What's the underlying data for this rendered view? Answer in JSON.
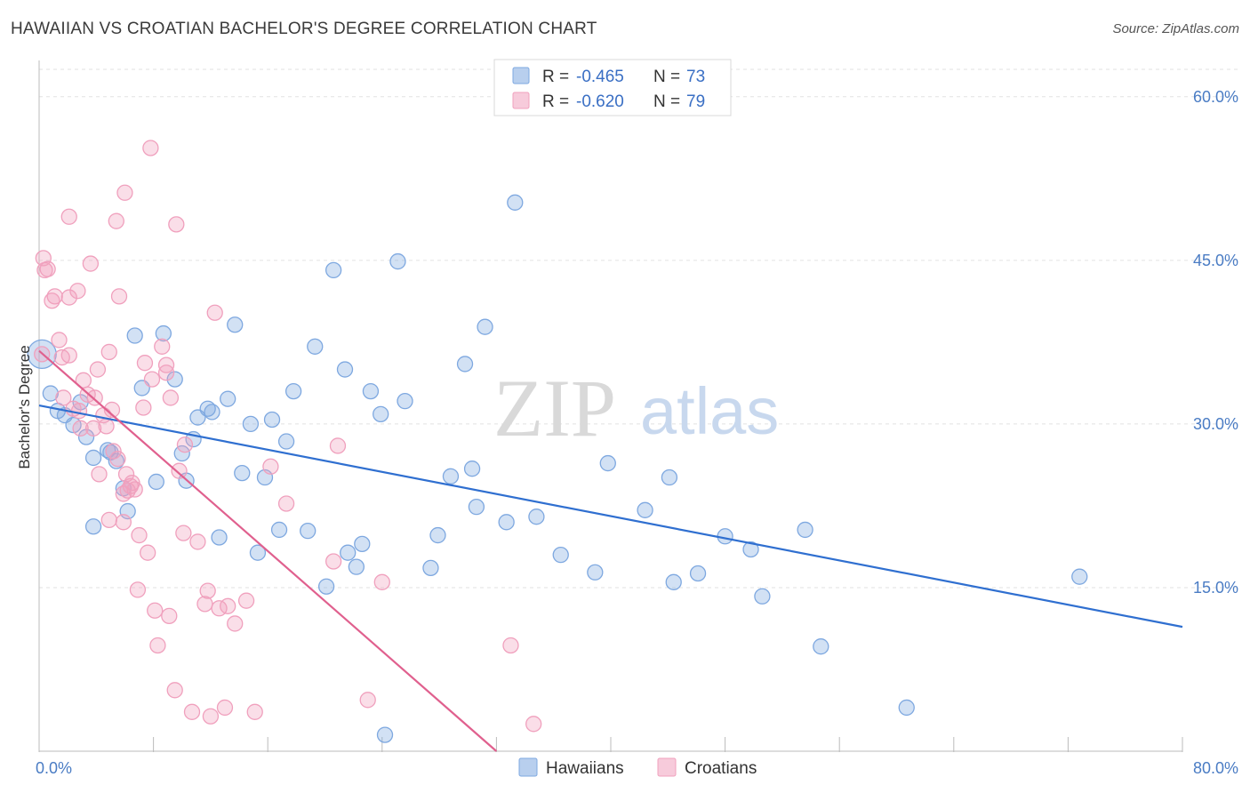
{
  "title": "HAWAIIAN VS CROATIAN BACHELOR'S DEGREE CORRELATION CHART",
  "source": "Source: ZipAtlas.com",
  "watermark": {
    "zip": "ZIP",
    "atlas": "atlas"
  },
  "legend_top": [
    {
      "r_label": "R = ",
      "r_value": "-0.465",
      "n_label": "N = ",
      "n_value": "73",
      "color": "#7ea8e0"
    },
    {
      "r_label": "R = ",
      "r_value": "-0.620",
      "n_label": "N = ",
      "n_value": "79",
      "color": "#f0a0bd"
    }
  ],
  "chart_data": {
    "type": "scatter",
    "title": "HAWAIIAN VS CROATIAN BACHELOR'S DEGREE CORRELATION CHART",
    "xlabel": "",
    "ylabel": "Bachelor's Degree",
    "xlim": [
      0,
      80
    ],
    "ylim": [
      0,
      63
    ],
    "x_tick_labels": [
      {
        "v": 0,
        "label": "0.0%"
      },
      {
        "v": 80,
        "label": "80.0%"
      }
    ],
    "y_tick_labels": [
      {
        "v": 15,
        "label": "15.0%"
      },
      {
        "v": 30,
        "label": "30.0%"
      },
      {
        "v": 45,
        "label": "45.0%"
      },
      {
        "v": 60,
        "label": "60.0%"
      }
    ],
    "grid": true,
    "legend_position": "bottom-center",
    "series": [
      {
        "name": "Hawaiians",
        "color": "#7ea8e0",
        "line_color": "#2f6fd0",
        "trend": [
          [
            0,
            31.7
          ],
          [
            80,
            11.4
          ]
        ],
        "points": [
          [
            0.2,
            36.4
          ],
          [
            0.8,
            32.8
          ],
          [
            1.3,
            31.2
          ],
          [
            1.8,
            30.8
          ],
          [
            2.4,
            29.9
          ],
          [
            2.9,
            32.0
          ],
          [
            3.3,
            28.8
          ],
          [
            3.8,
            26.9
          ],
          [
            4.8,
            27.6
          ],
          [
            5.4,
            26.6
          ],
          [
            5.9,
            24.1
          ],
          [
            6.2,
            22.0
          ],
          [
            6.7,
            38.1
          ],
          [
            7.2,
            33.3
          ],
          [
            8.2,
            24.7
          ],
          [
            8.7,
            38.3
          ],
          [
            9.5,
            34.1
          ],
          [
            10.0,
            27.3
          ],
          [
            10.3,
            24.8
          ],
          [
            10.8,
            28.6
          ],
          [
            11.1,
            30.6
          ],
          [
            11.8,
            31.4
          ],
          [
            12.1,
            31.1
          ],
          [
            12.6,
            19.6
          ],
          [
            13.2,
            32.3
          ],
          [
            13.7,
            39.1
          ],
          [
            14.2,
            25.5
          ],
          [
            14.8,
            30.0
          ],
          [
            15.3,
            18.2
          ],
          [
            15.8,
            25.1
          ],
          [
            16.3,
            30.4
          ],
          [
            16.8,
            20.3
          ],
          [
            17.3,
            28.4
          ],
          [
            17.8,
            33.0
          ],
          [
            18.8,
            20.2
          ],
          [
            19.3,
            37.1
          ],
          [
            20.1,
            15.1
          ],
          [
            20.6,
            44.1
          ],
          [
            21.4,
            35.0
          ],
          [
            21.6,
            18.2
          ],
          [
            22.2,
            16.9
          ],
          [
            22.6,
            19.0
          ],
          [
            23.2,
            33.0
          ],
          [
            23.9,
            30.9
          ],
          [
            24.2,
            1.5
          ],
          [
            25.1,
            44.9
          ],
          [
            25.6,
            32.1
          ],
          [
            27.4,
            16.8
          ],
          [
            27.9,
            19.8
          ],
          [
            28.8,
            25.2
          ],
          [
            29.8,
            35.5
          ],
          [
            30.3,
            25.9
          ],
          [
            30.6,
            22.4
          ],
          [
            31.2,
            38.9
          ],
          [
            32.7,
            21.0
          ],
          [
            33.3,
            50.3
          ],
          [
            34.8,
            21.5
          ],
          [
            36.5,
            18.0
          ],
          [
            38.9,
            16.4
          ],
          [
            39.8,
            26.4
          ],
          [
            42.4,
            22.1
          ],
          [
            44.1,
            25.1
          ],
          [
            44.4,
            15.5
          ],
          [
            46.1,
            16.3
          ],
          [
            48.0,
            19.7
          ],
          [
            49.8,
            18.5
          ],
          [
            50.6,
            14.2
          ],
          [
            53.6,
            20.3
          ],
          [
            54.7,
            9.6
          ],
          [
            60.7,
            4.0
          ],
          [
            72.8,
            16.0
          ],
          [
            3.8,
            20.6
          ],
          [
            5.0,
            27.4
          ]
        ]
      },
      {
        "name": "Croatians",
        "color": "#f0a0bd",
        "line_color": "#e0608e",
        "trend": [
          [
            0,
            36.7
          ],
          [
            32,
            0
          ]
        ],
        "points": [
          [
            0.2,
            36.4
          ],
          [
            0.3,
            45.2
          ],
          [
            0.4,
            44.1
          ],
          [
            0.6,
            44.2
          ],
          [
            0.9,
            41.3
          ],
          [
            1.1,
            41.7
          ],
          [
            1.4,
            37.7
          ],
          [
            1.6,
            36.1
          ],
          [
            1.7,
            32.4
          ],
          [
            2.1,
            41.6
          ],
          [
            2.1,
            36.3
          ],
          [
            2.4,
            31.4
          ],
          [
            2.7,
            42.2
          ],
          [
            2.8,
            31.2
          ],
          [
            2.9,
            29.6
          ],
          [
            3.1,
            34.0
          ],
          [
            3.4,
            32.7
          ],
          [
            3.6,
            44.7
          ],
          [
            3.8,
            29.6
          ],
          [
            3.9,
            32.4
          ],
          [
            4.1,
            35.0
          ],
          [
            4.2,
            25.4
          ],
          [
            4.5,
            30.8
          ],
          [
            4.7,
            29.8
          ],
          [
            4.9,
            21.2
          ],
          [
            4.9,
            36.6
          ],
          [
            5.1,
            31.3
          ],
          [
            5.2,
            27.5
          ],
          [
            5.5,
            26.8
          ],
          [
            5.6,
            41.7
          ],
          [
            5.9,
            23.6
          ],
          [
            6.1,
            25.4
          ],
          [
            6.2,
            23.9
          ],
          [
            6.5,
            24.6
          ],
          [
            6.7,
            24.0
          ],
          [
            7.0,
            19.8
          ],
          [
            7.3,
            31.5
          ],
          [
            7.6,
            18.2
          ],
          [
            7.9,
            34.1
          ],
          [
            8.1,
            12.9
          ],
          [
            8.3,
            9.7
          ],
          [
            8.6,
            37.1
          ],
          [
            8.9,
            35.4
          ],
          [
            9.1,
            12.4
          ],
          [
            9.2,
            32.4
          ],
          [
            9.6,
            48.3
          ],
          [
            9.8,
            25.7
          ],
          [
            10.1,
            20.0
          ],
          [
            10.2,
            28.1
          ],
          [
            10.7,
            3.6
          ],
          [
            11.1,
            19.2
          ],
          [
            11.6,
            13.5
          ],
          [
            11.8,
            14.7
          ],
          [
            12.0,
            3.2
          ],
          [
            12.3,
            40.2
          ],
          [
            12.6,
            13.1
          ],
          [
            13.0,
            4.0
          ],
          [
            13.2,
            13.3
          ],
          [
            13.7,
            11.7
          ],
          [
            14.5,
            13.8
          ],
          [
            15.1,
            3.6
          ],
          [
            16.2,
            26.1
          ],
          [
            17.3,
            22.7
          ],
          [
            20.6,
            17.4
          ],
          [
            20.9,
            28.0
          ],
          [
            23.0,
            4.7
          ],
          [
            24.0,
            15.5
          ],
          [
            33.0,
            9.7
          ],
          [
            34.6,
            2.5
          ],
          [
            5.9,
            21.0
          ],
          [
            6.4,
            24.3
          ],
          [
            7.4,
            35.6
          ],
          [
            8.9,
            34.7
          ],
          [
            9.5,
            5.6
          ],
          [
            5.4,
            48.6
          ],
          [
            7.8,
            55.3
          ],
          [
            6.0,
            51.2
          ],
          [
            6.9,
            14.8
          ],
          [
            2.1,
            49.0
          ]
        ]
      }
    ]
  }
}
